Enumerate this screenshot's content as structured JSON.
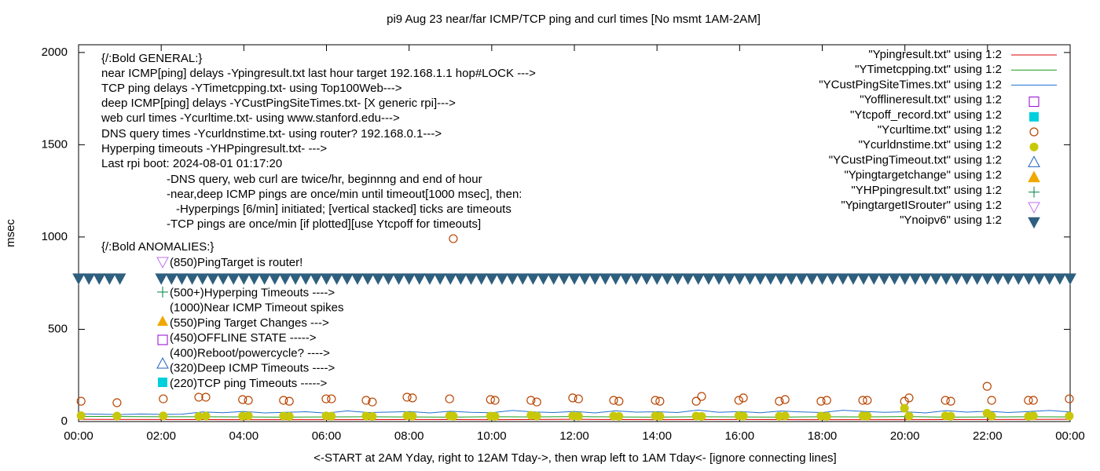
{
  "chart_data": {
    "type": "line",
    "title": "pi9 Aug 23  near/far ICMP/TCP ping and curl times [No msmt 1AM-2AM]",
    "y_label": "msec",
    "x_label": "<-START at 2AM Yday, right to 12AM Tday->, then wrap left to 1AM Tday<- [ignore connecting lines]",
    "xlim": [
      0,
      24
    ],
    "xticks": [
      {
        "value": 0,
        "label": "00:00"
      },
      {
        "value": 2,
        "label": "02:00"
      },
      {
        "value": 4,
        "label": "04:00"
      },
      {
        "value": 6,
        "label": "06:00"
      },
      {
        "value": 8,
        "label": "08:00"
      },
      {
        "value": 10,
        "label": "10:00"
      },
      {
        "value": 12,
        "label": "12:00"
      },
      {
        "value": 14,
        "label": "14:00"
      },
      {
        "value": 16,
        "label": "16:00"
      },
      {
        "value": 18,
        "label": "18:00"
      },
      {
        "value": 20,
        "label": "20:00"
      },
      {
        "value": 22,
        "label": "22:00"
      },
      {
        "value": 24,
        "label": "00:00"
      }
    ],
    "ylim": [
      0,
      2042
    ],
    "yticks": [
      0,
      500,
      1000,
      1500,
      2000
    ],
    "notes": [
      "{/:Bold GENERAL:}",
      "near ICMP[ping] delays -Ypingresult.txt last hour target 192.168.1.1 hop#LOCK --->",
      "TCP ping delays -YTimetcpping.txt- using Top100Web--->",
      "deep ICMP[ping] delays -YCustPingSiteTimes.txt- [X generic rpi]--->",
      "web curl times -Ycurltime.txt- using www.stanford.edu--->",
      "DNS query times -Ycurldnstime.txt- using router? 192.168.0.1--->",
      "Hyperping timeouts -YHPpingresult.txt- --->",
      "Last rpi boot: 2024-08-01 01:17:20",
      "-DNS query, web curl are twice/hr, beginnng and end of hour",
      "-near,deep ICMP pings are once/min until timeout[1000 msec], then:",
      "-Hyperpings [6/min] initiated; [vertical stacked] ticks are timeouts",
      "-TCP pings are once/min [if plotted][use Ytcpoff for timeouts]",
      "{/:Bold ANOMALIES:}"
    ],
    "anomalies": [
      "(850)PingTarget is router!",
      "(500+)Hyperping Timeouts ---->",
      "(1000)Near ICMP Timeout spikes",
      "(550)Ping Target Changes --->",
      "(450)OFFLINE STATE ----->",
      "(400)Reboot/powercycle? ---->",
      "(320)Deep ICMP Timeouts ---->",
      "(220)TCP ping Timeouts ----->"
    ],
    "series": [
      {
        "name": "\"Ypingresult.txt\" using 1:2",
        "color": "#dd0000",
        "marker": "line",
        "x": [
          0,
          2,
          4,
          6,
          8,
          10,
          12,
          14,
          16,
          18,
          20,
          22,
          24
        ],
        "values": [
          12,
          11,
          10,
          10,
          11,
          10,
          12,
          10,
          11,
          10,
          10,
          11,
          12
        ]
      },
      {
        "name": "\"YTimetcpping.txt\" using 1:2",
        "color": "#1a9a1a",
        "marker": "line",
        "x": [
          0,
          1,
          2,
          3,
          4,
          5,
          6,
          7,
          8,
          9,
          10,
          11,
          12,
          13,
          14,
          15,
          16,
          17,
          18,
          19,
          20,
          21,
          22,
          23,
          24
        ],
        "values": [
          28,
          27,
          26,
          26,
          25,
          24,
          25,
          26,
          25,
          24,
          26,
          25,
          27,
          25,
          24,
          26,
          25,
          24,
          26,
          25,
          27,
          24,
          25,
          26,
          25
        ]
      },
      {
        "name": "\"YCustPingSiteTimes.txt\" using 1:2",
        "color": "#1f6fcf",
        "marker": "line",
        "x": [
          0,
          0.5,
          1,
          1.5,
          2,
          2.5,
          3,
          3.5,
          4,
          4.5,
          5,
          5.5,
          6,
          6.5,
          7,
          7.5,
          8,
          8.5,
          9,
          9.5,
          10,
          10.5,
          11,
          11.5,
          12,
          12.5,
          13,
          13.5,
          14,
          14.5,
          15,
          15.5,
          16,
          16.5,
          17,
          17.5,
          18,
          18.5,
          19,
          19.5,
          20,
          20.5,
          21,
          21.5,
          22,
          22.5,
          23,
          23.5,
          24
        ],
        "values": [
          42,
          40,
          38,
          41,
          39,
          40,
          52,
          48,
          55,
          47,
          50,
          53,
          46,
          58,
          49,
          51,
          54,
          47,
          56,
          50,
          48,
          60,
          52,
          49,
          55,
          47,
          58,
          51,
          53,
          49,
          62,
          50,
          54,
          48,
          57,
          52,
          49,
          61,
          55,
          50,
          53,
          47,
          59,
          51,
          56,
          49,
          54,
          60,
          52
        ]
      },
      {
        "name": "\"Yofflineresult.txt\" using 1:2",
        "color": "#9400d3",
        "marker": "square-open",
        "x": [],
        "values": []
      },
      {
        "name": "\"Ytcpoff_record.txt\" using 1:2",
        "color": "#00d0dc",
        "marker": "square-filled",
        "x": [],
        "values": []
      },
      {
        "name": "\"Ycurltime.txt\" using 1:2",
        "color": "#b84400",
        "marker": "circle-open",
        "x": [
          0.06,
          0.93,
          2.05,
          2.91,
          3.08,
          3.97,
          4.11,
          4.96,
          5.1,
          5.99,
          6.12,
          6.96,
          7.11,
          7.95,
          8.08,
          8.98,
          9.07,
          9.97,
          10.08,
          10.95,
          11.09,
          11.96,
          12.1,
          12.95,
          13.08,
          13.96,
          14.07,
          14.95,
          15.08,
          15.98,
          16.09,
          16.96,
          17.1,
          17.97,
          18.11,
          18.98,
          19.09,
          19.99,
          20.1,
          20.98,
          21.11,
          21.99,
          22.1,
          22.99,
          23.11,
          23.98
        ],
        "values": [
          110,
          102,
          123,
          132,
          132,
          119,
          115,
          115,
          110,
          123,
          123,
          115,
          106,
          132,
          128,
          123,
          991,
          119,
          115,
          115,
          106,
          128,
          123,
          115,
          110,
          115,
          110,
          110,
          136,
          115,
          128,
          110,
          119,
          110,
          115,
          115,
          115,
          110,
          128,
          115,
          110,
          191,
          115,
          115,
          115,
          123
        ]
      },
      {
        "name": "\"Ycurldnstime.txt\" using 1:2",
        "color": "#c8c80a",
        "marker": "circle-filled",
        "x": [
          0.06,
          0.93,
          2.05,
          2.91,
          3.08,
          3.97,
          4.11,
          4.96,
          5.1,
          5.99,
          6.12,
          6.96,
          7.11,
          7.95,
          8.08,
          8.98,
          9.07,
          9.97,
          10.08,
          10.95,
          11.09,
          11.96,
          12.1,
          12.95,
          13.08,
          13.96,
          14.07,
          14.95,
          15.08,
          15.98,
          16.09,
          16.96,
          17.1,
          17.97,
          18.11,
          18.98,
          19.09,
          19.99,
          20.1,
          20.98,
          21.11,
          21.99,
          22.1,
          22.99,
          23.11,
          23.98
        ],
        "values": [
          32,
          30,
          31,
          28,
          30,
          29,
          31,
          30,
          28,
          31,
          29,
          30,
          28,
          32,
          30,
          31,
          29,
          30,
          28,
          34,
          30,
          31,
          29,
          30,
          28,
          31,
          29,
          30,
          28,
          32,
          30,
          29,
          31,
          30,
          28,
          31,
          30,
          72,
          30,
          31,
          29,
          45,
          30,
          28,
          31,
          30
        ]
      },
      {
        "name": "\"YCustPingTimeout.txt\" using 1:2",
        "color": "#1f5fc0",
        "marker": "triangle-up-open",
        "x": [],
        "values": []
      },
      {
        "name": "\"Ypingtargetchange\" using 1:2",
        "color": "#f0a800",
        "marker": "triangle-up-filled",
        "x": [],
        "values": []
      },
      {
        "name": "\"YHPpingresult.txt\" using 1:2",
        "color": "#008040",
        "marker": "plus",
        "x": [],
        "values": []
      },
      {
        "name": "\"YpingtargetISrouter\" using 1:2",
        "color": "#c070f0",
        "marker": "triangle-down-open",
        "x": [],
        "values": []
      },
      {
        "name": "\"Ynoipv6\" using 1:2",
        "color": "#2f5f7f",
        "marker": "triangle-down-filled",
        "x": [
          0,
          0.25,
          0.5,
          0.75,
          1,
          2,
          2.25,
          2.5,
          2.75,
          3,
          3.25,
          3.5,
          3.75,
          4,
          4.25,
          4.5,
          4.75,
          5,
          5.25,
          5.5,
          5.75,
          6,
          6.25,
          6.5,
          6.75,
          7,
          7.25,
          7.5,
          7.75,
          8,
          8.25,
          8.5,
          8.75,
          9,
          9.25,
          9.5,
          9.75,
          10,
          10.25,
          10.5,
          10.75,
          11,
          11.25,
          11.5,
          11.75,
          12,
          12.25,
          12.5,
          12.75,
          13,
          13.25,
          13.5,
          13.75,
          14,
          14.25,
          14.5,
          14.75,
          15,
          15.25,
          15.5,
          15.75,
          16,
          16.25,
          16.5,
          16.75,
          17,
          17.25,
          17.5,
          17.75,
          18,
          18.25,
          18.5,
          18.75,
          19,
          19.25,
          19.5,
          19.75,
          20,
          20.25,
          20.5,
          20.75,
          21,
          21.25,
          21.5,
          21.75,
          22,
          22.25,
          22.5,
          22.75,
          23,
          23.25,
          23.5,
          23.75,
          24
        ],
        "values": [
          775,
          775,
          775,
          775,
          775,
          775,
          775,
          775,
          775,
          775,
          775,
          775,
          775,
          775,
          775,
          775,
          775,
          775,
          775,
          775,
          775,
          775,
          775,
          775,
          775,
          775,
          775,
          775,
          775,
          775,
          775,
          775,
          775,
          775,
          775,
          775,
          775,
          775,
          775,
          775,
          775,
          775,
          775,
          775,
          775,
          775,
          775,
          775,
          775,
          775,
          775,
          775,
          775,
          775,
          775,
          775,
          775,
          775,
          775,
          775,
          775,
          775,
          775,
          775,
          775,
          775,
          775,
          775,
          775,
          775,
          775,
          775,
          775,
          775,
          775,
          775,
          775,
          775,
          775,
          775,
          775,
          775,
          775,
          775,
          775,
          775,
          775,
          775,
          775,
          775,
          775,
          775,
          775,
          775
        ]
      }
    ]
  }
}
